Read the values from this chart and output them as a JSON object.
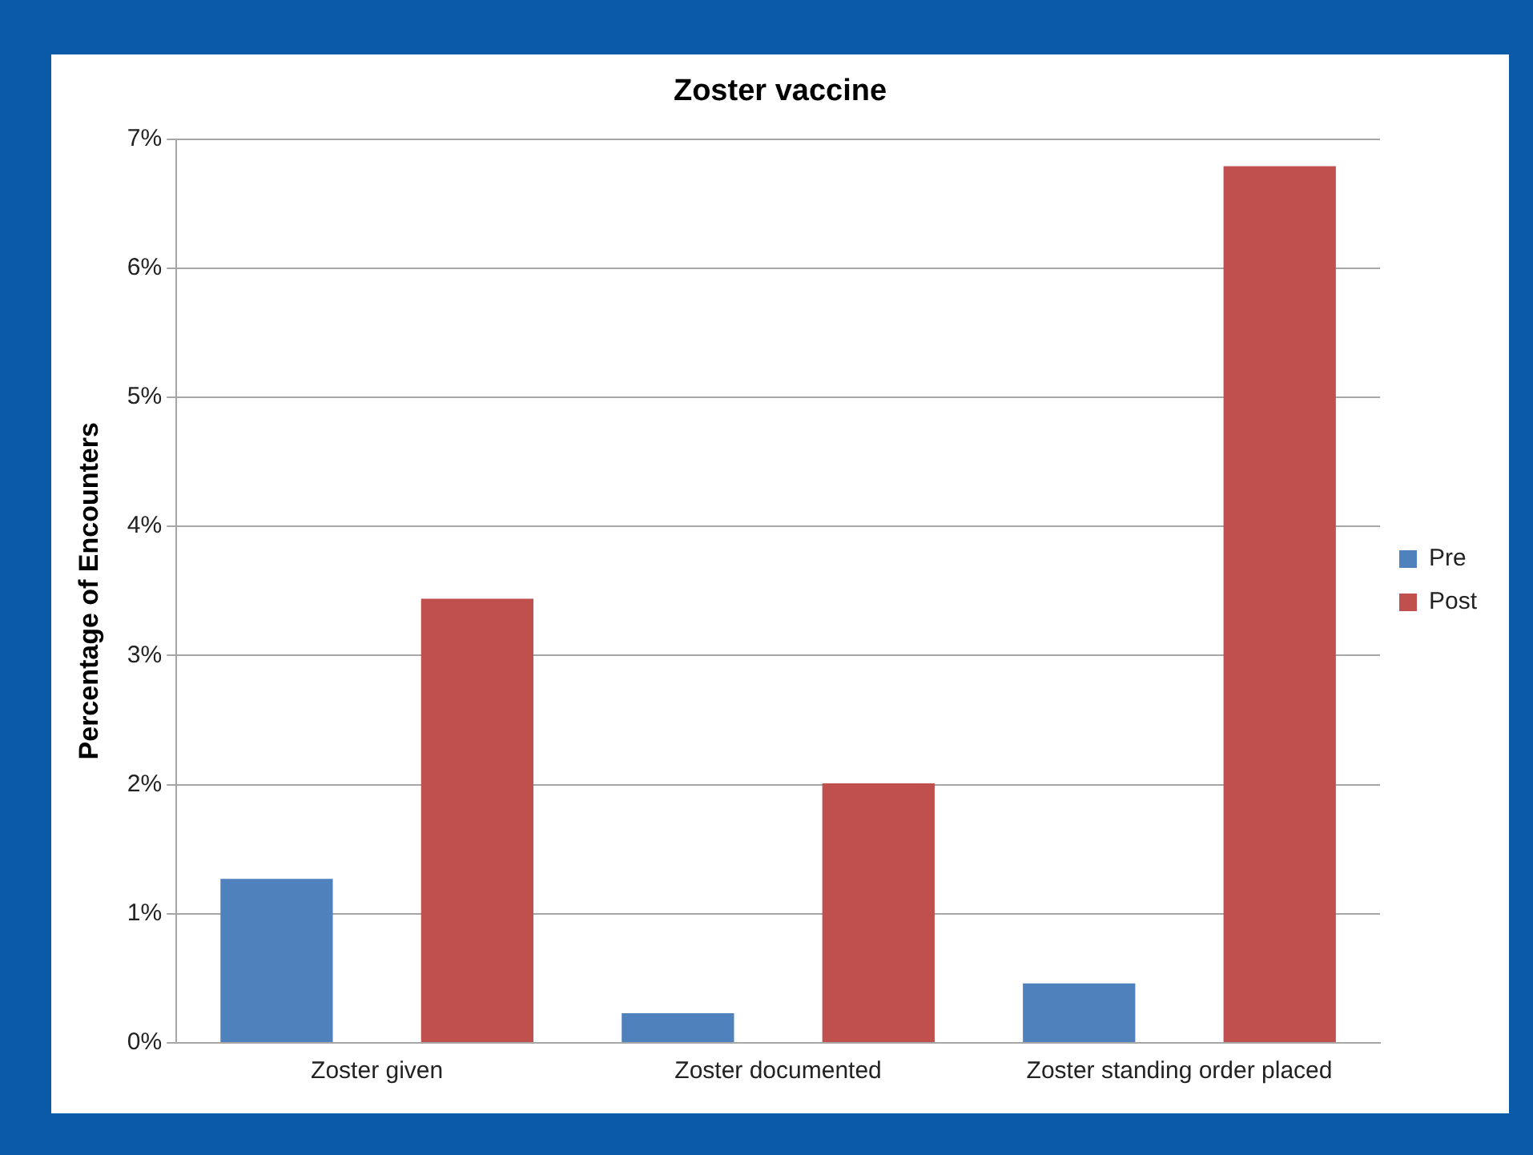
{
  "chart_data": {
    "type": "bar",
    "title": "Zoster vaccine",
    "ylabel": "Percentage of Encounters",
    "categories": [
      "Zoster given",
      "Zoster documented",
      "Zoster standing order placed"
    ],
    "series": [
      {
        "name": "Pre",
        "color": "#4f81bd",
        "values": [
          1.27,
          0.23,
          0.46
        ]
      },
      {
        "name": "Post",
        "color": "#c0504d",
        "values": [
          3.44,
          2.01,
          6.79
        ]
      }
    ],
    "ylim": [
      0,
      7
    ],
    "yticks": [
      {
        "value": 0,
        "label": "0%"
      },
      {
        "value": 1,
        "label": "1%"
      },
      {
        "value": 2,
        "label": "2%"
      },
      {
        "value": 3,
        "label": "3%"
      },
      {
        "value": 4,
        "label": "4%"
      },
      {
        "value": 5,
        "label": "5%"
      },
      {
        "value": 6,
        "label": "6%"
      },
      {
        "value": 7,
        "label": "7%"
      }
    ],
    "grid": "y",
    "legend": "right"
  }
}
